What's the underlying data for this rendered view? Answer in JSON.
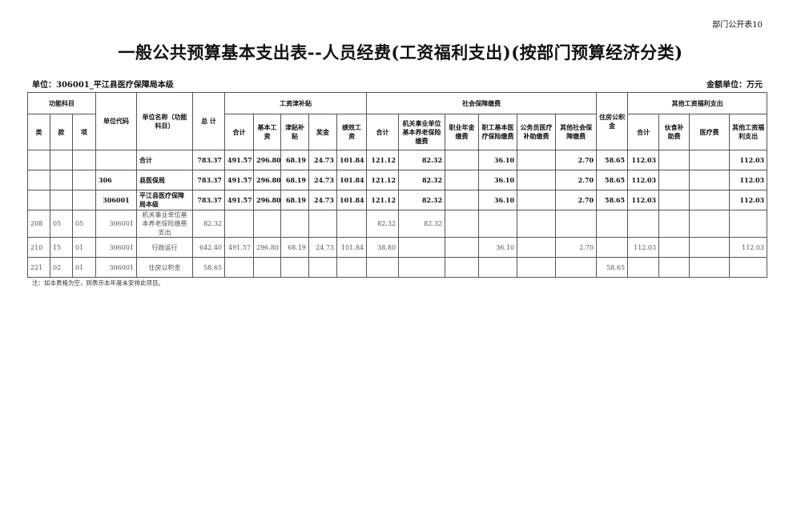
{
  "corner_label": "部门公开表10",
  "title": "一般公共预算基本支出表--人员经费(工资福利支出)(按部门预算经济分类)",
  "unit_label": "单位：306001_平江县医疗保障局本级",
  "money_unit": "金额单位：万元",
  "header": {
    "func": "功能科目",
    "code": "单位代码",
    "name": "单位名称（功能科目）",
    "total": "总  计",
    "wage": "工资津补贴",
    "social": "社会保障缴费",
    "housing": "住房公积金",
    "other": "其他工资福利支出",
    "func_cols": [
      "类",
      "款",
      "项"
    ],
    "wage_cols": [
      "合计",
      "基本工资",
      "津贴补贴",
      "奖金",
      "绩效工资"
    ],
    "social_cols": [
      "合计",
      "机关事业单位基本养老保险缴费",
      "职业年金缴费",
      "职工基本医疗保险缴费",
      "公务员医疗补助缴费",
      "其他社会保障缴费"
    ],
    "other_cols": [
      "合计",
      "伙食补助费",
      "医疗费",
      "其他工资福利支出"
    ]
  },
  "rows": [
    [
      "",
      "",
      "",
      "",
      "合计",
      "783.37",
      "491.57",
      "296.80",
      "68.19",
      "24.73",
      "101.84",
      "121.12",
      "82.32",
      "",
      "36.10",
      "",
      "2.70",
      "58.65",
      "112.03",
      "",
      "",
      "112.03"
    ],
    [
      "",
      "",
      "",
      "306",
      "县医保局",
      "783.37",
      "491.57",
      "296.80",
      "68.19",
      "24.73",
      "101.84",
      "121.12",
      "82.32",
      "",
      "36.10",
      "",
      "2.70",
      "58.65",
      "112.03",
      "",
      "",
      "112.03"
    ],
    [
      "",
      "",
      "",
      "306001",
      "平江县医疗保障局本级",
      "783.37",
      "491.57",
      "296.80",
      "68.19",
      "24.73",
      "101.84",
      "121.12",
      "82.32",
      "",
      "36.10",
      "",
      "2.70",
      "58.65",
      "112.03",
      "",
      "",
      "112.03"
    ],
    [
      "208",
      "05",
      "05",
      "306001",
      "机关事业单位基本养老保险缴费支出",
      "82.32",
      "",
      "",
      "",
      "",
      "",
      "82.32",
      "82.32",
      "",
      "",
      "",
      "",
      "",
      "",
      "",
      "",
      ""
    ],
    [
      "210",
      "15",
      "01",
      "306001",
      "行政运行",
      "642.40",
      "491.57",
      "296.80",
      "68.19",
      "24.73",
      "101.84",
      "38.80",
      "",
      "",
      "36.10",
      "",
      "2.70",
      "",
      "112.03",
      "",
      "",
      "112.03"
    ],
    [
      "221",
      "02",
      "01",
      "306001",
      "住房公积金",
      "58.65",
      "",
      "",
      "",
      "",
      "",
      "",
      "",
      "",
      "",
      "",
      "",
      "58.65",
      "",
      "",
      "",
      ""
    ]
  ],
  "note": "注：如本表格为空，则表示本年度未安排此项目。"
}
